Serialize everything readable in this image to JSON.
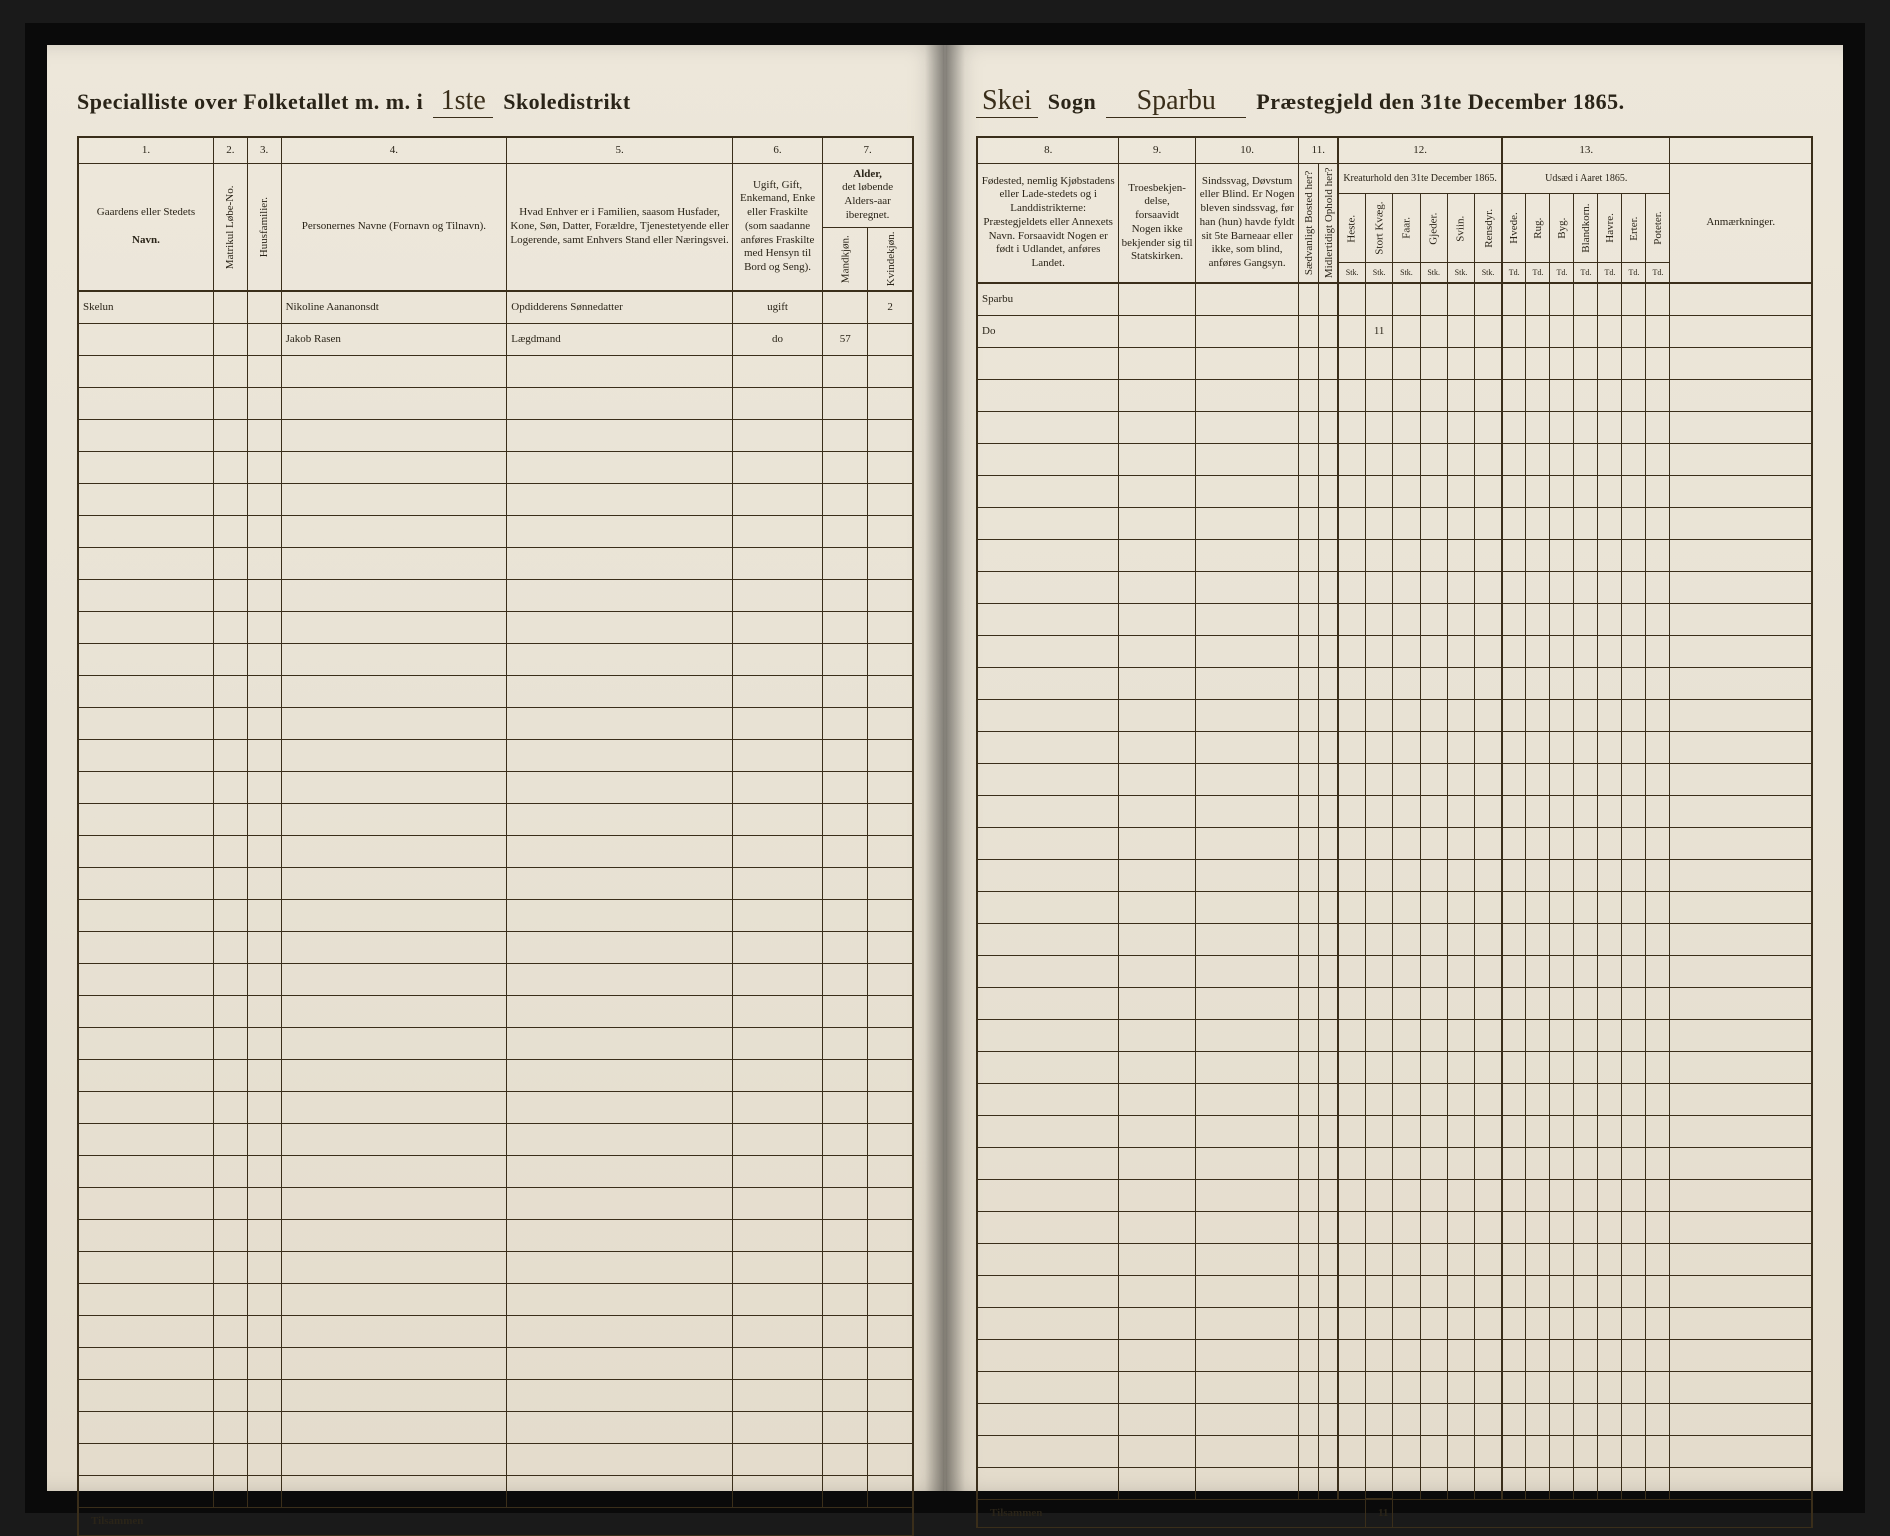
{
  "header": {
    "left_printed_1": "Specialliste over Folketallet m. m. i",
    "district_no": "1ste",
    "left_printed_2": "Skoledistrikt",
    "sogn_hand": "Skei",
    "sogn_label": "Sogn",
    "praeste_hand": "Sparbu",
    "right_printed": "Præstegjeld den 31te December 1865."
  },
  "cols_left": {
    "n1": "1.",
    "n2": "2.",
    "n3": "3.",
    "n4": "4.",
    "n5": "5.",
    "n6": "6.",
    "n7": "7.",
    "h1": "Gaardens eller Stedets",
    "h1b": "Navn.",
    "h2": "Matrikul Løbe-No.",
    "h3": "Huusfamilier.",
    "h4": "Personernes Navne (Fornavn og Tilnavn).",
    "h5": "Hvad Enhver er i Familien, saasom Husfader, Kone, Søn, Datter, Forældre, Tjenestetyende eller Logerende, samt Enhvers Stand eller Næringsvei.",
    "h6": "Ugift, Gift, Enkemand, Enke eller Fraskilte (som saadanne anføres Fraskilte med Hensyn til Bord og Seng).",
    "h7a": "Alder,",
    "h7b": "det løbende Alders-aar iberegnet.",
    "h7c": "Mandkjøn.",
    "h7d": "Kvindekjøn."
  },
  "cols_right": {
    "n8": "8.",
    "n9": "9.",
    "n10": "10.",
    "n11": "11.",
    "n12": "12.",
    "n13": "13.",
    "h8": "Fødested, nemlig Kjøbstadens eller Lade-stedets og i Landdistrikterne: Præstegjeldets eller Annexets Navn. Forsaavidt Nogen er født i Udlandet, anføres Landet.",
    "h9": "Troesbekjen-delse, forsaavidt Nogen ikke bekjender sig til Statskirken.",
    "h10": "Sindssvag, Døvstum eller Blind. Er Nogen bleven sindssvag, før han (hun) havde fyldt sit 5te Barneaar eller ikke, som blind, anføres Gangsyn.",
    "h11a": "Sædvanligt Bosted her?",
    "h11b": "Midlertidigt Ophold her?",
    "h12": "Kreaturhold den 31te December 1865.",
    "h12_sub": [
      "Heste.",
      "Stort Kvæg.",
      "Faar.",
      "Gjeder.",
      "Sviin.",
      "Rensdyr."
    ],
    "h12_subsub": "Stk.",
    "h13": "Udsæd i Aaret 1865.",
    "h13_sub": [
      "Hvede.",
      "Rug.",
      "Byg.",
      "Blandkorn.",
      "Havre.",
      "Erter.",
      "Poteter."
    ],
    "h13_subsub": "Td.",
    "h_anm": "Anmærkninger."
  },
  "rows": [
    {
      "sted": "Skelun",
      "navn": "Nikoline Aananonsdt",
      "stilling": "Opdidderens Sønnedatter",
      "civil": "ugift",
      "m": "",
      "k": "2",
      "fodested": "Sparbu",
      "kvaeg": ""
    },
    {
      "sted": "",
      "navn": "Jakob Rasen",
      "stilling": "Lægdmand",
      "civil": "do",
      "m": "57",
      "k": "",
      "fodested": "Do",
      "kvaeg": "11"
    }
  ],
  "footer": {
    "tilsammen": "Tilsammen",
    "sum_kvaeg": "11"
  },
  "layout": {
    "empty_rows": 36,
    "colors": {
      "paper": "#e8e2d4",
      "ink": "#2a2418",
      "rule": "#3a2e1a",
      "bg": "#1a1a1a"
    }
  }
}
